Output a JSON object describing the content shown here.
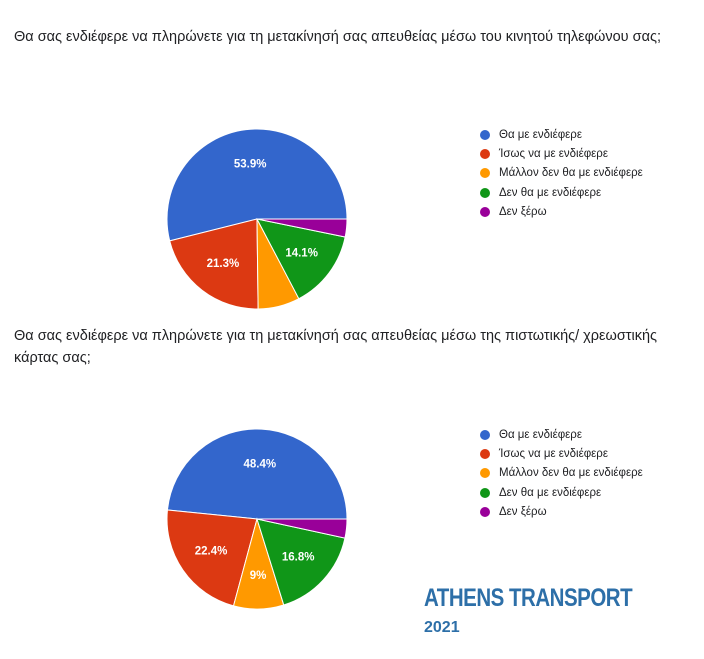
{
  "chart_data": [
    {
      "type": "pie",
      "title": "Θα σας ενδιέφερε να πληρώνετε για τη μετακίνησή σας απευθείας μέσω του κινητού τηλεφώνου σας;",
      "categories": [
        "Θα με ενδιέφερε",
        "Ίσως να με ενδιέφερε",
        "Μάλλον δεν θα με ενδιέφερε",
        "Δεν θα με ενδιέφερε",
        "Δεν ξέρω"
      ],
      "values": [
        53.9,
        21.3,
        7.5,
        14.1,
        3.2
      ],
      "value_labels": [
        "53.9%",
        "21.3%",
        "",
        "14.1%",
        ""
      ],
      "colors": [
        "#3366cc",
        "#dc3912",
        "#ff9900",
        "#109618",
        "#990099"
      ],
      "legend_position": "right"
    },
    {
      "type": "pie",
      "title": "Θα σας ενδιέφερε να πληρώνετε για τη μετακίνησή σας απευθείας μέσω της πιστωτικής/ χρεωστικής κάρτας σας;",
      "categories": [
        "Θα με ενδιέφερε",
        "Ίσως να με ενδιέφερε",
        "Μάλλον δεν θα με ενδιέφερε",
        "Δεν θα με ενδιέφερε",
        "Δεν ξέρω"
      ],
      "values": [
        48.4,
        22.4,
        9,
        16.8,
        3.4
      ],
      "value_labels": [
        "48.4%",
        "22.4%",
        "9%",
        "16.8%",
        ""
      ],
      "colors": [
        "#3366cc",
        "#dc3912",
        "#ff9900",
        "#109618",
        "#990099"
      ],
      "legend_position": "right"
    }
  ],
  "brand": {
    "name": "ATHENS TRANSPORT",
    "year": "2021",
    "color": "#2d6fa8"
  }
}
